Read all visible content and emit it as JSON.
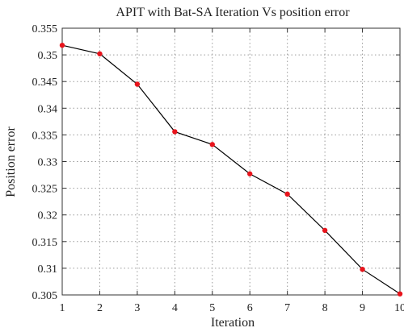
{
  "chart_data": {
    "type": "line",
    "title": "APIT with Bat-SA Iteration Vs position error",
    "xlabel": "Iteration",
    "ylabel": "Position error",
    "x": [
      1,
      2,
      3,
      4,
      5,
      6,
      7,
      8,
      9,
      10
    ],
    "y": [
      0.3518,
      0.3502,
      0.3445,
      0.3356,
      0.3332,
      0.3277,
      0.3239,
      0.3171,
      0.3098,
      0.3052
    ],
    "xlim": [
      1,
      10
    ],
    "ylim": [
      0.305,
      0.355
    ],
    "xticks": [
      "1",
      "2",
      "3",
      "4",
      "5",
      "6",
      "7",
      "8",
      "9",
      "10"
    ],
    "yticks": [
      "0.305",
      "0.31",
      "0.315",
      "0.32",
      "0.325",
      "0.33",
      "0.335",
      "0.34",
      "0.345",
      "0.35",
      "0.355"
    ],
    "grid": true,
    "line_color": "#000000",
    "marker_color": "#e8141c"
  }
}
